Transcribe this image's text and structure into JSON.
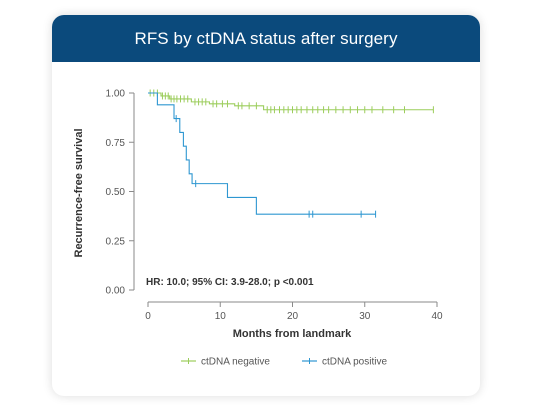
{
  "title": "RFS by ctDNA status after surgery",
  "chart_data": {
    "type": "line",
    "subtype": "kaplan-meier",
    "xlabel": "Months from landmark",
    "ylabel": "Recurrence-free survival",
    "xlim": [
      0,
      40
    ],
    "ylim": [
      0,
      1.0
    ],
    "x_ticks": [
      "0",
      "10",
      "20",
      "30",
      "40"
    ],
    "y_ticks": [
      "0.00",
      "0.25",
      "0.50",
      "0.75",
      "1.00"
    ],
    "annotation": "HR: 10.0; 95% CI: 3.9-28.0; p <0.001",
    "legend_position": "bottom",
    "series": [
      {
        "name": "ctDNA negative",
        "color": "#9ccd5c",
        "step_x": [
          0,
          1.8,
          3.0,
          6.0,
          8.5,
          12.0,
          16.0,
          39.5
        ],
        "step_y": [
          1.0,
          0.985,
          0.97,
          0.955,
          0.945,
          0.935,
          0.915,
          0.915
        ],
        "censor_x": [
          0.3,
          0.8,
          1.3,
          2.0,
          2.4,
          2.8,
          3.2,
          3.6,
          4.0,
          4.5,
          5.0,
          5.5,
          6.5,
          7.0,
          7.5,
          8.0,
          9.0,
          9.5,
          10.3,
          11.0,
          12.5,
          13.0,
          14.0,
          15.0,
          16.5,
          17.0,
          17.5,
          18.2,
          18.8,
          19.4,
          20.0,
          20.6,
          21.2,
          22.0,
          22.8,
          23.5,
          24.3,
          25.0,
          26.0,
          27.0,
          28.0,
          29.0,
          30.0,
          31.0,
          32.5,
          34.0,
          35.5,
          39.5
        ]
      },
      {
        "name": "ctDNA positive",
        "color": "#2e97d1",
        "step_x": [
          0,
          1.3,
          3.6,
          4.4,
          4.9,
          5.3,
          5.7,
          6.1,
          11.0,
          15.0,
          31.5
        ],
        "step_y": [
          1.0,
          0.94,
          0.87,
          0.8,
          0.73,
          0.66,
          0.59,
          0.54,
          0.47,
          0.385,
          0.385
        ],
        "censor_x": [
          3.9,
          6.6,
          22.3,
          22.8,
          29.5,
          31.5
        ]
      }
    ]
  }
}
